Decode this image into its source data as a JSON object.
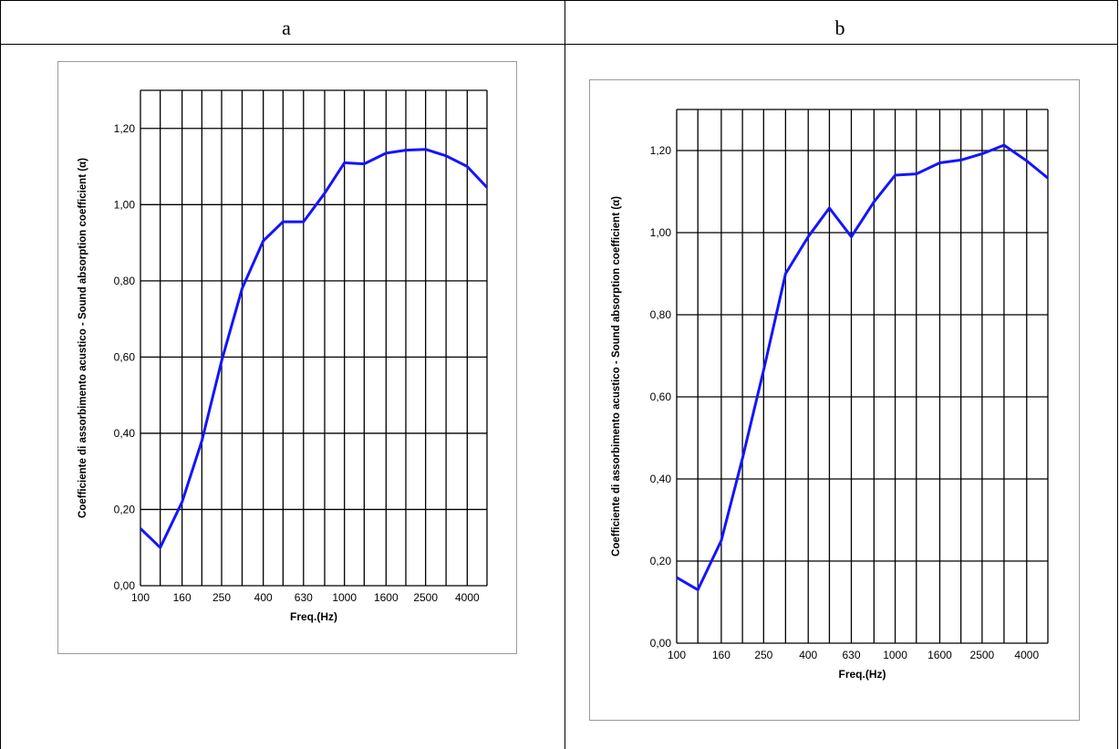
{
  "table": {
    "headers": [
      "a",
      "b"
    ]
  },
  "chart_data": [
    {
      "type": "line",
      "panel": "a",
      "x_tick_labels": [
        "100",
        "160",
        "250",
        "400",
        "630",
        "1000",
        "1600",
        "2500",
        "4000"
      ],
      "frequencies": [
        100,
        125,
        160,
        200,
        250,
        315,
        400,
        500,
        630,
        800,
        1000,
        1250,
        1600,
        2000,
        2500,
        3150,
        4000,
        5000
      ],
      "series": [
        {
          "values": [
            0.15,
            0.1,
            0.22,
            0.38,
            0.59,
            0.78,
            0.905,
            0.955,
            0.955,
            1.03,
            1.11,
            1.107,
            1.135,
            1.143,
            1.145,
            1.128,
            1.1,
            1.045
          ]
        }
      ],
      "xlabel": "Freq.(Hz)",
      "ylabel": "Coefficiente di assorbimento acustico - Sound absorption coefficient (α)",
      "ylim": [
        0,
        1.3
      ],
      "y_ticks": [
        "0,00",
        "0,20",
        "0,40",
        "0,60",
        "0,80",
        "1,00",
        "1,20"
      ],
      "x_scale": "log",
      "grid": true,
      "line_color": "#1414ff"
    },
    {
      "type": "line",
      "panel": "b",
      "x_tick_labels": [
        "100",
        "160",
        "250",
        "400",
        "630",
        "1000",
        "1600",
        "2500",
        "4000"
      ],
      "frequencies": [
        100,
        125,
        160,
        200,
        250,
        315,
        400,
        500,
        630,
        800,
        1000,
        1250,
        1600,
        2000,
        2500,
        3150,
        4000,
        5000
      ],
      "series": [
        {
          "values": [
            0.16,
            0.13,
            0.25,
            0.45,
            0.665,
            0.9,
            0.99,
            1.06,
            0.99,
            1.075,
            1.14,
            1.143,
            1.17,
            1.177,
            1.192,
            1.213,
            1.175,
            1.133
          ]
        }
      ],
      "xlabel": "Freq.(Hz)",
      "ylabel": "Coefficiente di assorbimento acustico - Sound absorption coefficient (α)",
      "ylim": [
        0,
        1.3
      ],
      "y_ticks": [
        "0,00",
        "0,20",
        "0,40",
        "0,60",
        "0,80",
        "1,00",
        "1,20"
      ],
      "x_scale": "log",
      "grid": true,
      "line_color": "#1414ff"
    }
  ]
}
